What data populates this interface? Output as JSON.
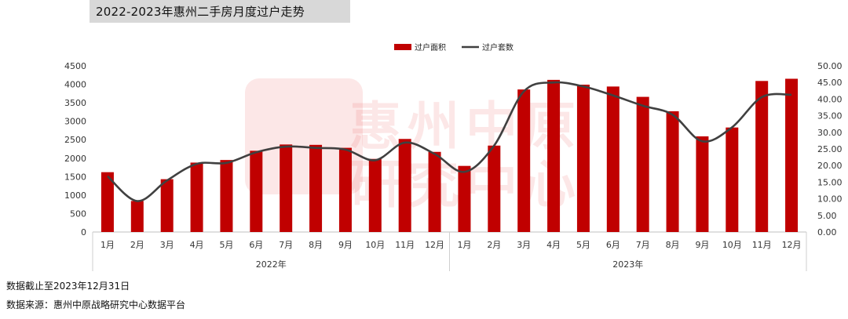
{
  "title": "2022-2023年惠州二手房月度过户走势",
  "watermark": {
    "line1": "惠州中原",
    "line2": "研究中心"
  },
  "notes": {
    "cutoff": "数据截止至2023年12月31日",
    "source": "数据来源：惠州中原战略研究中心数据平台"
  },
  "colors": {
    "bar": "#c00000",
    "line": "#404040"
  },
  "chart_data": {
    "type": "bar",
    "legend": [
      "过户面积",
      "过户套数"
    ],
    "legend_position": "top-right",
    "categories": [
      "1月",
      "2月",
      "3月",
      "4月",
      "5月",
      "6月",
      "7月",
      "8月",
      "9月",
      "10月",
      "11月",
      "12月",
      "1月",
      "2月",
      "3月",
      "4月",
      "5月",
      "6月",
      "7月",
      "8月",
      "9月",
      "10月",
      "11月",
      "12月"
    ],
    "groups": [
      {
        "label": "2022年",
        "span": 12
      },
      {
        "label": "2023年",
        "span": 12
      }
    ],
    "series": [
      {
        "name": "过户面积",
        "type": "bar",
        "axis": "left",
        "values": [
          1620,
          840,
          1430,
          1880,
          1950,
          2200,
          2370,
          2360,
          2280,
          1980,
          2520,
          2170,
          1790,
          2340,
          3860,
          4120,
          3990,
          3940,
          3660,
          3270,
          2590,
          2830,
          4090,
          4150
        ]
      },
      {
        "name": "过户套数",
        "type": "line",
        "axis": "right",
        "values": [
          16.8,
          9.3,
          15.5,
          20.5,
          20.8,
          24.0,
          25.7,
          25.3,
          24.8,
          21.6,
          26.9,
          23.5,
          18.1,
          26.0,
          42.3,
          45.0,
          43.8,
          41.1,
          38.0,
          35.3,
          27.3,
          31.5,
          40.6,
          41.3
        ]
      }
    ],
    "y_left": {
      "min": 0,
      "max": 4500,
      "step": 500,
      "ticks": [
        "0",
        "500",
        "1000",
        "1500",
        "2000",
        "2500",
        "3000",
        "3500",
        "4000",
        "4500"
      ]
    },
    "y_right": {
      "min": 0,
      "max": 50,
      "step": 5,
      "ticks": [
        "0.00",
        "5.00",
        "10.00",
        "15.00",
        "20.00",
        "25.00",
        "30.00",
        "35.00",
        "40.00",
        "45.00",
        "50.00"
      ]
    },
    "grid": false
  }
}
